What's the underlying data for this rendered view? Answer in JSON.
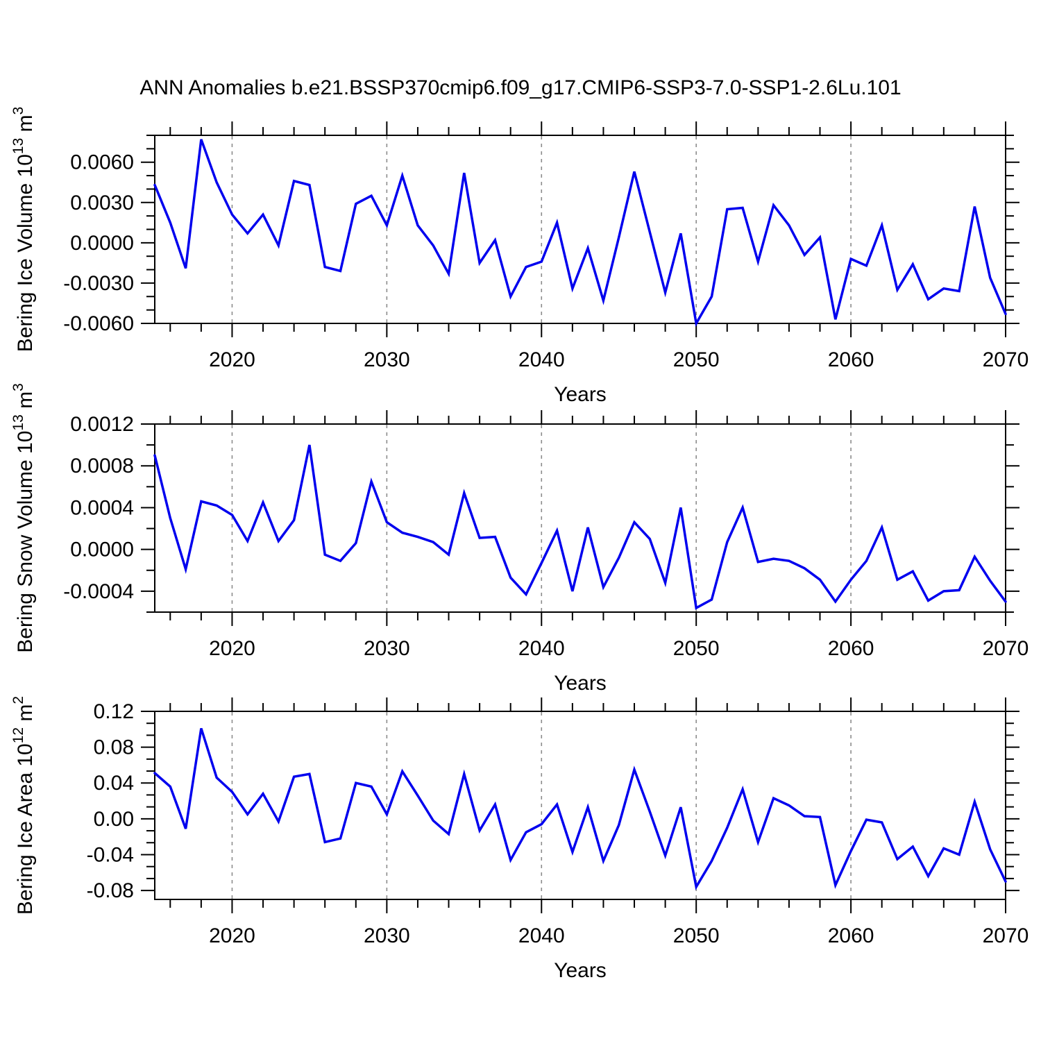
{
  "title": "ANN Anomalies b.e21.BSSP370cmip6.f09_g17.CMIP6-SSP3-7.0-SSP1-2.6Lu.101",
  "colors": {
    "line": "#0000EE",
    "frame": "#000000",
    "gridline": "#8c8c8c",
    "background": "#ffffff"
  },
  "x_axis": {
    "label": "Years",
    "range": [
      2015,
      2070
    ],
    "major_ticks": [
      2020,
      2030,
      2040,
      2050,
      2060,
      2070
    ],
    "major_tick_labels": [
      "2020",
      "2030",
      "2040",
      "2050",
      "2060",
      "2070"
    ],
    "minor_step_years": 2,
    "gridlines": [
      2020,
      2030,
      2040,
      2050,
      2060
    ],
    "grid_style": "dashed"
  },
  "years": [
    2015,
    2016,
    2017,
    2018,
    2019,
    2020,
    2021,
    2022,
    2023,
    2024,
    2025,
    2026,
    2027,
    2028,
    2029,
    2030,
    2031,
    2032,
    2033,
    2034,
    2035,
    2036,
    2037,
    2038,
    2039,
    2040,
    2041,
    2042,
    2043,
    2044,
    2045,
    2046,
    2047,
    2048,
    2049,
    2050,
    2051,
    2052,
    2053,
    2054,
    2055,
    2056,
    2057,
    2058,
    2059,
    2060,
    2061,
    2062,
    2063,
    2064,
    2065,
    2066,
    2067,
    2068,
    2069,
    2070
  ],
  "chart_data": [
    {
      "type": "line",
      "name": "bering-ice-volume",
      "ylabel": {
        "text": "Bering Ice Volume 10",
        "exp": "13",
        "unit": " m",
        "unit_exp": "3"
      },
      "xlabel": "Years",
      "ylim": [
        -0.006,
        0.008
      ],
      "yticks": [
        {
          "v": 0.006,
          "label": "0.0060"
        },
        {
          "v": 0.003,
          "label": "0.0030"
        },
        {
          "v": 0.0,
          "label": "0.0000"
        },
        {
          "v": -0.003,
          "label": "-0.0030"
        },
        {
          "v": -0.006,
          "label": "-0.0060"
        }
      ],
      "y_minor_step": 0.001,
      "x": "years (shared, 2015-2070)",
      "values": [
        0.0043,
        0.0015,
        -0.0019,
        0.0077,
        0.0045,
        0.0021,
        0.0007,
        0.0021,
        -0.0002,
        0.0046,
        0.0043,
        -0.0018,
        -0.0021,
        0.0029,
        0.0035,
        0.0013,
        0.005,
        0.0013,
        -0.0002,
        -0.0023,
        0.0052,
        -0.0015,
        0.0002,
        -0.004,
        -0.0018,
        -0.0014,
        0.0015,
        -0.0034,
        -0.0004,
        -0.0043,
        0.0004,
        0.0053,
        0.0008,
        -0.0037,
        0.0007,
        -0.006,
        -0.004,
        0.0025,
        0.0026,
        -0.0014,
        0.0028,
        0.0013,
        -0.0009,
        0.0004,
        -0.0057,
        -0.0012,
        -0.0017,
        0.0013,
        -0.0035,
        -0.0016,
        -0.0042,
        -0.0034,
        -0.0036,
        0.0027,
        -0.0026,
        -0.0053
      ]
    },
    {
      "type": "line",
      "name": "bering-snow-volume",
      "ylabel": {
        "text": "Bering Snow Volume 10",
        "exp": "13",
        "unit": " m",
        "unit_exp": "3"
      },
      "xlabel": "Years",
      "ylim": [
        -0.0006,
        0.0012
      ],
      "yticks": [
        {
          "v": 0.0012,
          "label": "0.0012"
        },
        {
          "v": 0.0008,
          "label": "0.0008"
        },
        {
          "v": 0.0004,
          "label": "0.0004"
        },
        {
          "v": 0.0,
          "label": "0.0000"
        },
        {
          "v": -0.0004,
          "label": "-0.0004"
        }
      ],
      "y_minor_step": 0.0002,
      "x": "years (shared, 2015-2070)",
      "values": [
        0.0009,
        0.0003,
        -0.00019,
        0.00046,
        0.00042,
        0.00033,
        8e-05,
        0.00045,
        8e-05,
        0.00028,
        0.001,
        -5e-05,
        -0.00011,
        6e-05,
        0.00065,
        0.00026,
        0.00016,
        0.00012,
        7e-05,
        -5e-05,
        0.00054,
        0.00011,
        0.00012,
        -0.00027,
        -0.00043,
        -0.00013,
        0.00018,
        -0.0004,
        0.00021,
        -0.00036,
        -8e-05,
        0.00026,
        0.0001,
        -0.00032,
        0.0004,
        -0.00056,
        -0.00048,
        7e-05,
        0.0004,
        -0.00012,
        -9e-05,
        -0.00011,
        -0.00018,
        -0.00029,
        -0.0005,
        -0.00029,
        -0.00011,
        0.00021,
        -0.00029,
        -0.00021,
        -0.00049,
        -0.0004,
        -0.00039,
        -7e-05,
        -0.0003,
        -0.0005
      ]
    },
    {
      "type": "line",
      "name": "bering-ice-area",
      "ylabel": {
        "text": "Bering Ice Area 10",
        "exp": "12",
        "unit": " m",
        "unit_exp": "2"
      },
      "xlabel": "Years",
      "ylim": [
        -0.09,
        0.12
      ],
      "yticks": [
        {
          "v": 0.12,
          "label": "0.12"
        },
        {
          "v": 0.08,
          "label": "0.08"
        },
        {
          "v": 0.04,
          "label": "0.04"
        },
        {
          "v": 0.0,
          "label": "0.00"
        },
        {
          "v": -0.04,
          "label": "-0.04"
        },
        {
          "v": -0.08,
          "label": "-0.08"
        }
      ],
      "y_minor_step": 0.0133333,
      "x": "years (shared, 2015-2070)",
      "values": [
        0.051,
        0.036,
        -0.011,
        0.101,
        0.046,
        0.03,
        0.005,
        0.028,
        -0.003,
        0.047,
        0.05,
        -0.026,
        -0.022,
        0.04,
        0.036,
        0.005,
        0.053,
        0.026,
        -0.002,
        -0.017,
        0.05,
        -0.013,
        0.016,
        -0.046,
        -0.015,
        -0.006,
        0.016,
        -0.037,
        0.013,
        -0.047,
        -0.007,
        0.055,
        0.008,
        -0.041,
        0.013,
        -0.076,
        -0.047,
        -0.01,
        0.033,
        -0.026,
        0.023,
        0.015,
        0.003,
        0.002,
        -0.074,
        -0.036,
        -0.001,
        -0.004,
        -0.045,
        -0.031,
        -0.064,
        -0.033,
        -0.04,
        0.019,
        -0.034,
        -0.07
      ]
    }
  ]
}
